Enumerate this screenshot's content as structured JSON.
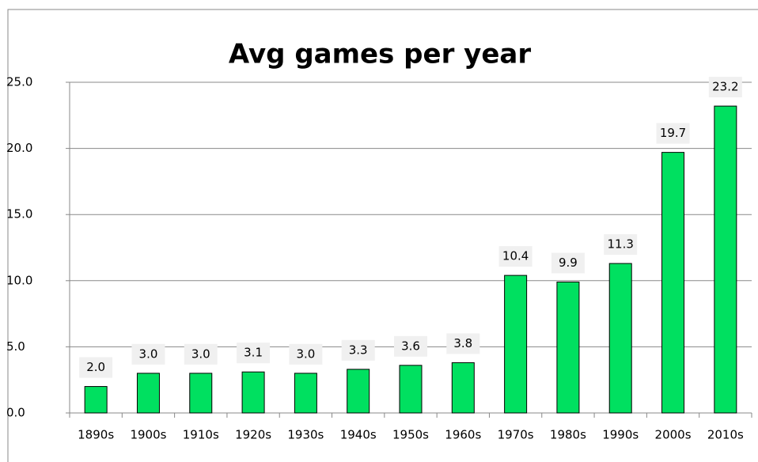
{
  "chart_data": {
    "type": "bar",
    "title": "Avg games per year",
    "categories": [
      "1890s",
      "1900s",
      "1910s",
      "1920s",
      "1930s",
      "1940s",
      "1950s",
      "1960s",
      "1970s",
      "1980s",
      "1990s",
      "2000s",
      "2010s"
    ],
    "values": [
      2.0,
      3.0,
      3.0,
      3.1,
      3.0,
      3.3,
      3.6,
      3.8,
      10.4,
      9.9,
      11.3,
      19.7,
      23.2
    ],
    "value_labels": [
      "2.0",
      "3.0",
      "3.0",
      "3.1",
      "3.0",
      "3.3",
      "3.6",
      "3.8",
      "10.4",
      "9.9",
      "11.3",
      "19.7",
      "23.2"
    ],
    "color": "#00e060",
    "ylim": [
      0,
      25
    ],
    "yticks": [
      {
        "value": 0,
        "label": "0.0"
      },
      {
        "value": 5,
        "label": "5.0"
      },
      {
        "value": 10,
        "label": "10.0"
      },
      {
        "value": 15,
        "label": "15.0"
      },
      {
        "value": 20,
        "label": "20.0"
      },
      {
        "value": 25,
        "label": "25.0"
      }
    ],
    "grid": true
  }
}
